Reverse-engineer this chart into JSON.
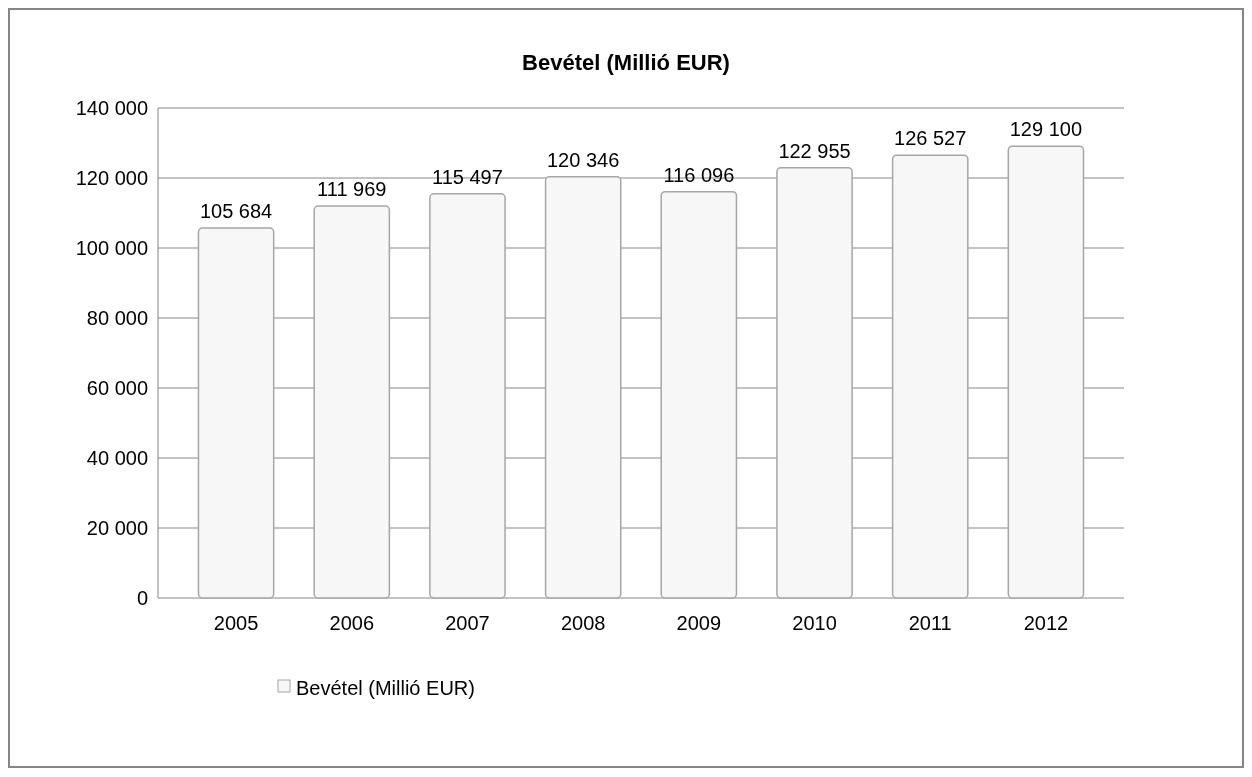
{
  "chart_data": {
    "type": "bar",
    "title": "Bevétel (Millió EUR)",
    "categories": [
      "2005",
      "2006",
      "2007",
      "2008",
      "2009",
      "2010",
      "2011",
      "2012"
    ],
    "series": [
      {
        "name": "Bevétel (Millió EUR)",
        "color": "#f7f7f7",
        "values": [
          105684,
          111969,
          115497,
          120346,
          116096,
          122955,
          126527,
          129100
        ],
        "value_labels": [
          "105 684",
          "111 969",
          "115 497",
          "120 346",
          "116 096",
          "122 955",
          "126 527",
          "129 100"
        ]
      }
    ],
    "ylim": [
      0,
      140000
    ],
    "yticks": [
      {
        "value": 0,
        "label": "0"
      },
      {
        "value": 20000,
        "label": "20 000"
      },
      {
        "value": 40000,
        "label": "40 000"
      },
      {
        "value": 60000,
        "label": "60 000"
      },
      {
        "value": 80000,
        "label": "80 000"
      },
      {
        "value": 100000,
        "label": "100 000"
      },
      {
        "value": 120000,
        "label": "120 000"
      },
      {
        "value": 140000,
        "label": "140 000"
      }
    ],
    "grid": "y",
    "legend": "bottom left"
  }
}
